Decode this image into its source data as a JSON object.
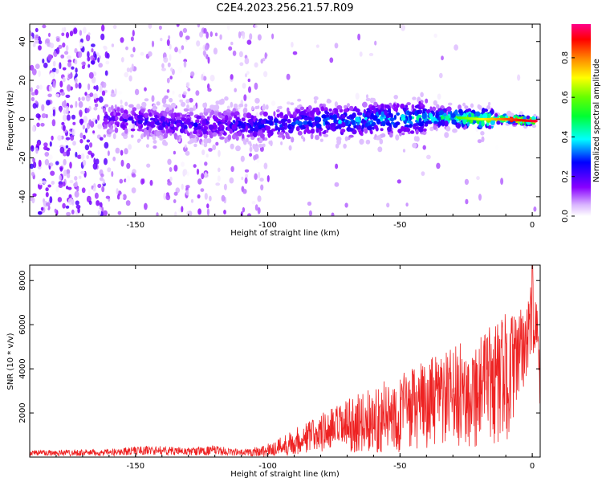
{
  "title": "C2E4.2023.256.21.57.R09",
  "colors": {
    "snr_line": "#ee2222",
    "axis": "#000000"
  },
  "chart_data": [
    {
      "type": "heatmap",
      "xlabel": "Height of straight line (km)",
      "ylabel": "Frequency (Hz)",
      "xlim": [
        -190,
        3
      ],
      "ylim": [
        -50,
        49
      ],
      "xticks": [
        -150,
        -100,
        -50,
        0
      ],
      "xtick_labels": [
        "-150",
        "-100",
        "-50",
        "0"
      ],
      "yticks": [
        -40,
        -20,
        0,
        20,
        40
      ],
      "ytick_labels": [
        "-40",
        "-20",
        "0",
        "20",
        "40"
      ],
      "colorbar": {
        "label": "Normalized spectral amplitude",
        "range": [
          0,
          0.97
        ],
        "ticks": [
          0.0,
          0.2,
          0.4,
          0.6,
          0.8
        ],
        "tick_labels": [
          "0.0",
          "0.2",
          "0.4",
          "0.6",
          "0.8"
        ],
        "colormap": "rainbow (white-violet-blue-cyan-green-yellow-orange-red-pink)"
      },
      "ridge": {
        "description": "main signal band around 0 Hz",
        "x": [
          -160,
          -150,
          -140,
          -130,
          -120,
          -110,
          -100,
          -90,
          -80,
          -70,
          -60,
          -50,
          -40,
          -30,
          -20,
          -10,
          0
        ],
        "center_hz": [
          0,
          -1,
          -2,
          -3,
          -3,
          -3,
          -3,
          -2,
          -1,
          -1,
          0,
          0,
          1,
          1,
          0,
          0,
          -1
        ],
        "amplitude": [
          0.2,
          0.25,
          0.25,
          0.25,
          0.25,
          0.28,
          0.3,
          0.32,
          0.35,
          0.38,
          0.4,
          0.42,
          0.45,
          0.55,
          0.7,
          0.85,
          0.95
        ]
      },
      "noise_region": "scattered low-amplitude speckle for heights below -100 km, dense below -160 km",
      "grid": false
    },
    {
      "type": "line",
      "xlabel": "Height of straight line (km)",
      "ylabel": "SNR (10 * v/v)",
      "xlim": [
        -190,
        3
      ],
      "ylim": [
        0,
        8700
      ],
      "xticks": [
        -150,
        -100,
        -50,
        0
      ],
      "xtick_labels": [
        "-150",
        "-100",
        "-50",
        "0"
      ],
      "yticks": [
        2000,
        4000,
        6000,
        8000
      ],
      "ytick_labels": [
        "2000",
        "4000",
        "6000",
        "8000"
      ],
      "series": [
        {
          "color": "#ee2222",
          "envelope_x": [
            -190,
            -160,
            -150,
            -140,
            -130,
            -120,
            -110,
            -100,
            -90,
            -80,
            -70,
            -60,
            -50,
            -40,
            -30,
            -20,
            -10,
            -5,
            0,
            2,
            3
          ],
          "envelope_mean": [
            200,
            200,
            300,
            300,
            250,
            300,
            200,
            300,
            700,
            1100,
            1400,
            1700,
            2000,
            2400,
            2700,
            3000,
            3600,
            4500,
            6200,
            5500,
            3500
          ],
          "envelope_spread": [
            150,
            150,
            200,
            200,
            180,
            220,
            150,
            300,
            600,
            900,
            1200,
            1500,
            1800,
            2000,
            2300,
            2600,
            3000,
            2000,
            1800,
            1200,
            1500
          ],
          "peak_x": 0,
          "peak_value": 8700
        }
      ],
      "grid": false
    }
  ]
}
